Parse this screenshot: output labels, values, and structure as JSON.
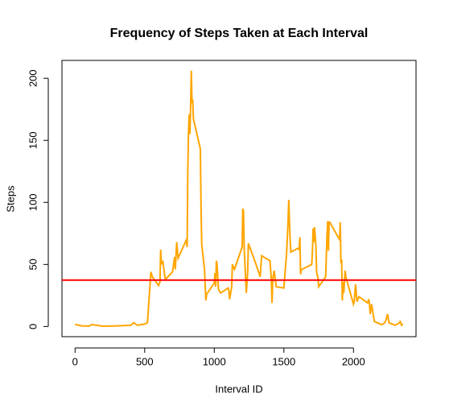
{
  "chart_data": {
    "type": "line",
    "title": "Frequency of Steps Taken at Each Interval",
    "xlabel": "Interval ID",
    "ylabel": "Steps",
    "x": [
      0,
      50,
      100,
      120,
      200,
      300,
      400,
      420,
      450,
      500,
      520,
      530,
      545,
      555,
      600,
      610,
      615,
      620,
      630,
      645,
      650,
      700,
      715,
      720,
      730,
      740,
      800,
      805,
      810,
      815,
      820,
      825,
      830,
      835,
      840,
      845,
      850,
      855,
      900,
      905,
      910,
      930,
      935,
      940,
      945,
      1000,
      1005,
      1010,
      1015,
      1020,
      1030,
      1045,
      1100,
      1105,
      1110,
      1115,
      1125,
      1130,
      1145,
      1200,
      1205,
      1210,
      1215,
      1230,
      1240,
      1245,
      1300,
      1330,
      1340,
      1400,
      1410,
      1415,
      1420,
      1430,
      1445,
      1500,
      1520,
      1530,
      1535,
      1540,
      1545,
      1550,
      1600,
      1610,
      1615,
      1620,
      1625,
      1630,
      1700,
      1705,
      1710,
      1715,
      1720,
      1730,
      1735,
      1745,
      1750,
      1800,
      1805,
      1810,
      1815,
      1820,
      1825,
      1830,
      1900,
      1905,
      1910,
      1915,
      1920,
      1925,
      1930,
      1940,
      1945,
      2000,
      2005,
      2015,
      2025,
      2040,
      2100,
      2110,
      2115,
      2120,
      2130,
      2150,
      2200,
      2215,
      2230,
      2245,
      2255,
      2300,
      2330,
      2335,
      2340,
      2345,
      2355
    ],
    "series": [
      {
        "name": "Steps",
        "color": "#ffa500",
        "values": [
          1.7,
          0.5,
          0.3,
          1.5,
          0.2,
          0.5,
          1,
          3,
          1,
          2,
          3,
          20,
          44,
          40,
          33,
          36,
          62,
          50,
          53,
          40,
          38,
          44,
          56,
          46,
          68,
          55,
          70,
          64,
          127,
          157,
          171,
          155,
          177,
          206,
          180,
          183,
          167,
          165,
          143,
          95,
          66,
          46,
          32,
          21,
          26,
          35,
          43,
          32,
          53,
          50,
          30,
          27,
          31,
          29,
          22,
          25,
          32,
          50,
          46,
          64,
          95,
          93,
          63,
          27,
          44,
          67,
          50,
          40,
          57,
          53,
          38,
          19,
          38,
          45,
          32,
          31,
          60,
          84,
          102,
          85,
          70,
          60,
          63,
          62,
          72,
          42,
          46,
          46,
          50,
          60,
          79,
          68,
          80,
          65,
          44,
          39,
          32,
          40,
          57,
          74,
          85,
          61,
          84,
          84,
          70,
          84,
          51,
          54,
          21,
          36,
          27,
          45,
          40,
          18,
          20,
          34,
          20,
          24,
          19,
          22,
          18,
          10,
          18,
          4,
          1.6,
          2,
          4,
          10,
          3,
          1,
          3,
          4,
          3,
          1,
          2
        ]
      }
    ],
    "hline": {
      "value": 37.38,
      "color": "#ff0000"
    },
    "xlim": [
      -94.2,
      2449.2
    ],
    "xticks": [
      0,
      500,
      1000,
      1500,
      2000
    ],
    "ylim": [
      -8.2,
      214.4
    ],
    "yticks": [
      0,
      50,
      100,
      150,
      200
    ]
  }
}
